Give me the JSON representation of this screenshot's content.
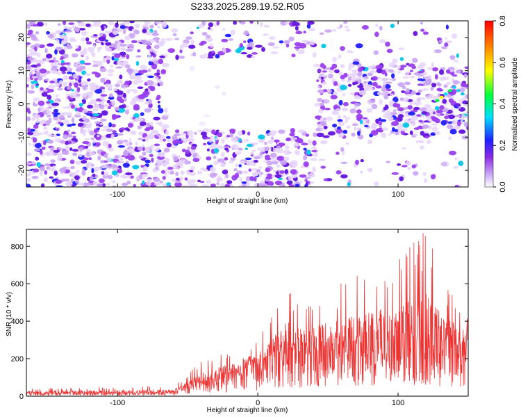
{
  "title": "S233.2025.289.19.52.R05",
  "chart_data": [
    {
      "type": "heatmap",
      "xlabel": "Height of straight line (km)",
      "ylabel": "Frequency (Hz)",
      "xlim": [
        -165,
        150
      ],
      "ylim": [
        -25,
        25
      ],
      "x_ticks": [
        -100,
        0,
        100
      ],
      "y_ticks": [
        -20,
        -10,
        0,
        10,
        20
      ],
      "colorbar": {
        "label": "Normalized spectral amplitude",
        "range": [
          0,
          0.8
        ],
        "ticks": [
          "0.0",
          "0.2",
          "0.4",
          "0.6",
          "0.8"
        ],
        "colors": [
          "#ffffff",
          "#8a2be2",
          "#0000ff",
          "#00ffff",
          "#00ff00",
          "#ffff00",
          "#ff8000",
          "#ff0000"
        ]
      },
      "regions": [
        {
          "x": [
            -165,
            -65
          ],
          "y": [
            -25,
            25
          ],
          "density": "high"
        },
        {
          "x": [
            -65,
            42
          ],
          "y": [
            -25,
            -8
          ],
          "density": "high"
        },
        {
          "x": [
            -65,
            42
          ],
          "y": [
            -8,
            14
          ],
          "density": "empty"
        },
        {
          "x": [
            -65,
            42
          ],
          "y": [
            14,
            25
          ],
          "density": "medium"
        },
        {
          "x": [
            42,
            150
          ],
          "y": [
            -10,
            12
          ],
          "density": "high"
        },
        {
          "x": [
            42,
            150
          ],
          "y": [
            -25,
            -10
          ],
          "density": "low"
        },
        {
          "x": [
            42,
            150
          ],
          "y": [
            12,
            25
          ],
          "density": "low"
        }
      ]
    },
    {
      "type": "line",
      "xlabel": "Height of straight line (km)",
      "ylabel": "SNR (10 * v/v)",
      "xlim": [
        -165,
        150
      ],
      "ylim": [
        0,
        890
      ],
      "x_ticks": [
        -100,
        0,
        100
      ],
      "y_ticks": [
        0,
        200,
        400,
        600,
        800
      ],
      "series": [
        {
          "color": "#ee3333",
          "envelope_x": [
            -165,
            -60,
            -50,
            -40,
            -20,
            0,
            20,
            40,
            60,
            80,
            100,
            120,
            130,
            150
          ],
          "envelope_mean": [
            15,
            20,
            45,
            70,
            110,
            160,
            210,
            240,
            260,
            270,
            280,
            270,
            260,
            250
          ],
          "envelope_peak": [
            40,
            55,
            120,
            190,
            260,
            320,
            620,
            560,
            610,
            690,
            730,
            890,
            680,
            450
          ]
        }
      ]
    }
  ]
}
